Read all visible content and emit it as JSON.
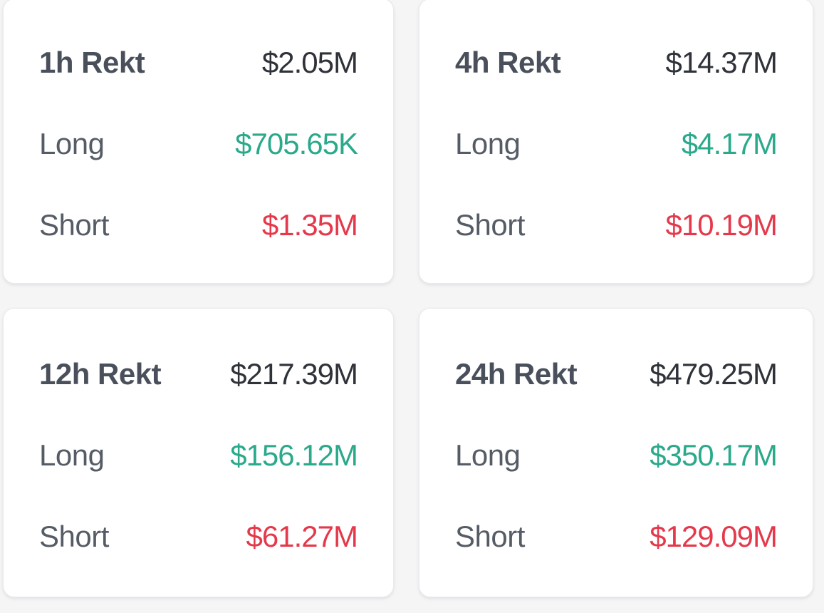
{
  "page": {
    "background_color": "#f5f5f6",
    "card_background_color": "#ffffff"
  },
  "colors": {
    "long": "#2aa98b",
    "short": "#e5394b",
    "title_text": "#4a505b",
    "total_text": "#2f3339",
    "label_text": "#565c66"
  },
  "cards": [
    {
      "title": "1h Rekt",
      "total": "$2.05M",
      "long_label": "Long",
      "long_value": "$705.65K",
      "short_label": "Short",
      "short_value": "$1.35M"
    },
    {
      "title": "4h Rekt",
      "total": "$14.37M",
      "long_label": "Long",
      "long_value": "$4.17M",
      "short_label": "Short",
      "short_value": "$10.19M"
    },
    {
      "title": "12h Rekt",
      "total": "$217.39M",
      "long_label": "Long",
      "long_value": "$156.12M",
      "short_label": "Short",
      "short_value": "$61.27M"
    },
    {
      "title": "24h Rekt",
      "total": "$479.25M",
      "long_label": "Long",
      "long_value": "$350.17M",
      "short_label": "Short",
      "short_value": "$129.09M"
    }
  ]
}
